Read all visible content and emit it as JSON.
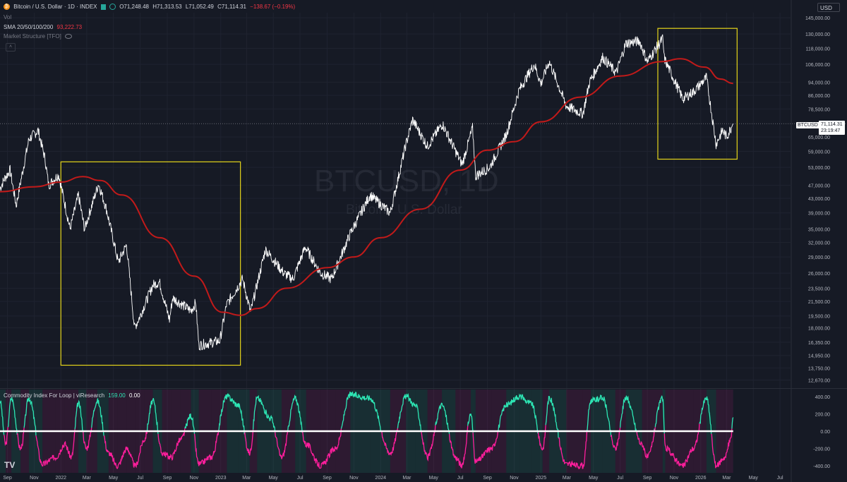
{
  "header": {
    "symbol_title": "Bitcoin / U.S. Dollar · 1D · INDEX",
    "btc_glyph": "₿",
    "ohlc": {
      "open": "O71,248.48",
      "high": "H71,313.53",
      "low": "L71,052.49",
      "close": "C71,114.31",
      "change": "−138.67 (−0.19%)"
    },
    "currency": "USD",
    "collapse_glyph": "˄"
  },
  "indicators": {
    "vol_label": "Vol",
    "sma_label": "SMA 20/50/100/200",
    "sma_value": "93,222.73",
    "market_structure_label": "Market Structure [TFO]",
    "cci_label": "Commodity Index For Loop | viResearch",
    "cci_value_1": "159.00",
    "cci_value_2": "0.00"
  },
  "watermark": {
    "title": "BTCUSD, 1D",
    "subtitle": "Bitcoin / U.S. Dollar"
  },
  "price_label": {
    "symbol": "BTCUSD",
    "last_price": "71,114.31",
    "countdown": "23:19:47"
  },
  "tradingview_logo": "TV",
  "colors": {
    "background": "#161a25",
    "price_line": "#ffffff",
    "sma": "#c21a1a",
    "highlight_box": "#e5d51a",
    "cci_up": "#2de6b4",
    "cci_down": "#ff1e9c"
  },
  "chart_data": [
    {
      "type": "line",
      "title": "BTCUSD, 1D",
      "subtitle": "Bitcoin / U.S. Dollar",
      "x_labels": [
        "Sep",
        "Nov",
        "2022",
        "Mar",
        "May",
        "Jul",
        "Sep",
        "Nov",
        "2023",
        "Mar",
        "May",
        "Jul",
        "Sep",
        "Nov",
        "2024",
        "Mar",
        "May",
        "Jul",
        "Sep",
        "Nov",
        "2025",
        "Mar",
        "May",
        "Jul",
        "Sep",
        "Nov",
        "2026",
        "Mar",
        "May",
        "Jul"
      ],
      "x_start": "2021-08-15",
      "x_end": "2026-07-25",
      "y_scale": "log",
      "ylim": [
        12000,
        150000
      ],
      "y_ticks": [
        "145,000.00",
        "130,000.00",
        "118,000.00",
        "106,000.00",
        "94,000.00",
        "86,000.00",
        "78,500.00",
        "65,000.00",
        "59,000.00",
        "53,000.00",
        "47,000.00",
        "43,000.00",
        "39,000.00",
        "35,000.00",
        "32,000.00",
        "29,000.00",
        "26,000.00",
        "23,500.00",
        "21,500.00",
        "19,500.00",
        "18,000.00",
        "16,350.00",
        "14,950.00",
        "13,750.00",
        "12,670.00"
      ],
      "series": [
        {
          "name": "BTCUSD",
          "points": [
            [
              "2021-08-15",
              46000
            ],
            [
              "2021-08-25",
              49000
            ],
            [
              "2021-09-07",
              52000
            ],
            [
              "2021-09-21",
              41000
            ],
            [
              "2021-10-01",
              48000
            ],
            [
              "2021-10-20",
              64000
            ],
            [
              "2021-11-10",
              68000
            ],
            [
              "2021-11-26",
              56000
            ],
            [
              "2021-12-04",
              47000
            ],
            [
              "2021-12-27",
              50500
            ],
            [
              "2022-01-22",
              35000
            ],
            [
              "2022-02-10",
              44000
            ],
            [
              "2022-02-24",
              35000
            ],
            [
              "2022-03-28",
              47500
            ],
            [
              "2022-04-15",
              40000
            ],
            [
              "2022-05-12",
              28000
            ],
            [
              "2022-05-31",
              31500
            ],
            [
              "2022-06-18",
              18000
            ],
            [
              "2022-07-01",
              19500
            ],
            [
              "2022-07-30",
              24000
            ],
            [
              "2022-08-14",
              24500
            ],
            [
              "2022-09-06",
              19000
            ],
            [
              "2022-09-13",
              22000
            ],
            [
              "2022-10-25",
              20200
            ],
            [
              "2022-11-05",
              21300
            ],
            [
              "2022-11-12",
              16000
            ],
            [
              "2022-12-30",
              16500
            ],
            [
              "2023-01-14",
              21000
            ],
            [
              "2023-02-20",
              25000
            ],
            [
              "2023-03-10",
              20000
            ],
            [
              "2023-04-13",
              30500
            ],
            [
              "2023-05-25",
              26000
            ],
            [
              "2023-06-15",
              25000
            ],
            [
              "2023-07-13",
              31000
            ],
            [
              "2023-08-17",
              26000
            ],
            [
              "2023-09-11",
              25000
            ],
            [
              "2023-10-24",
              34000
            ],
            [
              "2023-12-08",
              44000
            ],
            [
              "2024-01-23",
              39000
            ],
            [
              "2024-02-28",
              62000
            ],
            [
              "2024-03-14",
              73000
            ],
            [
              "2024-04-17",
              61000
            ],
            [
              "2024-05-21",
              71000
            ],
            [
              "2024-07-05",
              54000
            ],
            [
              "2024-07-29",
              69000
            ],
            [
              "2024-08-05",
              50000
            ],
            [
              "2024-09-06",
              53000
            ],
            [
              "2024-10-14",
              66000
            ],
            [
              "2024-11-12",
              89000
            ],
            [
              "2024-12-17",
              106000
            ],
            [
              "2025-01-01",
              93000
            ],
            [
              "2025-01-20",
              108000
            ],
            [
              "2025-02-28",
              80000
            ],
            [
              "2025-04-07",
              76000
            ],
            [
              "2025-04-22",
              94000
            ],
            [
              "2025-05-22",
              111000
            ],
            [
              "2025-06-22",
              100000
            ],
            [
              "2025-07-14",
              122000
            ],
            [
              "2025-08-14",
              124000
            ],
            [
              "2025-09-01",
              108000
            ],
            [
              "2025-10-06",
              126000
            ],
            [
              "2025-10-10",
              110000
            ],
            [
              "2025-11-21",
              84000
            ],
            [
              "2025-12-15",
              88000
            ],
            [
              "2026-01-14",
              97000
            ],
            [
              "2026-02-05",
              62000
            ],
            [
              "2026-02-20",
              68000
            ],
            [
              "2026-03-01",
              65000
            ],
            [
              "2026-03-16",
              71114
            ]
          ]
        },
        {
          "name": "SMA 200",
          "points": [
            [
              "2021-08-15",
              45000
            ],
            [
              "2021-11-01",
              46500
            ],
            [
              "2022-01-01",
              48000
            ],
            [
              "2022-02-20",
              49800
            ],
            [
              "2022-04-01",
              48500
            ],
            [
              "2022-05-20",
              44000
            ],
            [
              "2022-08-15",
              33000
            ],
            [
              "2022-11-01",
              25500
            ],
            [
              "2023-01-05",
              20000
            ],
            [
              "2023-02-15",
              19600
            ],
            [
              "2023-03-25",
              20500
            ],
            [
              "2023-06-01",
              23500
            ],
            [
              "2023-09-01",
              27000
            ],
            [
              "2023-11-01",
              29000
            ],
            [
              "2024-01-01",
              33000
            ],
            [
              "2024-04-01",
              40000
            ],
            [
              "2024-07-01",
              52000
            ],
            [
              "2024-09-01",
              59500
            ],
            [
              "2024-11-01",
              63000
            ],
            [
              "2025-01-01",
              72000
            ],
            [
              "2025-04-01",
              85000
            ],
            [
              "2025-07-01",
              98000
            ],
            [
              "2025-10-05",
              108000
            ],
            [
              "2025-11-15",
              110000
            ],
            [
              "2026-01-10",
              104000
            ],
            [
              "2026-02-15",
              96000
            ],
            [
              "2026-03-16",
              93223
            ]
          ]
        }
      ],
      "annotations": [
        {
          "type": "rectangle",
          "from": "2022-01-01",
          "to": "2023-02-15",
          "low": 14000,
          "high": 55000
        },
        {
          "type": "rectangle",
          "from": "2025-09-25",
          "to": "2026-03-25",
          "low": 56000,
          "high": 135000
        }
      ]
    },
    {
      "type": "area",
      "title": "Commodity Index For Loop | viResearch",
      "ylim": [
        -480,
        480
      ],
      "y_ticks": [
        "400.00",
        "200.00",
        "0.00",
        "-200.00",
        "-400.00"
      ],
      "zero_line": 0,
      "series": [
        {
          "name": "CCI Loop",
          "points": [
            [
              "2021-08-15",
              350
            ],
            [
              "2021-08-28",
              -150
            ],
            [
              "2021-09-10",
              380
            ],
            [
              "2021-10-01",
              -200
            ],
            [
              "2021-10-20",
              380
            ],
            [
              "2021-11-20",
              -380
            ],
            [
              "2021-12-20",
              -300
            ],
            [
              "2022-01-10",
              -150
            ],
            [
              "2022-01-25",
              -300
            ],
            [
              "2022-02-10",
              320
            ],
            [
              "2022-02-28",
              -200
            ],
            [
              "2022-03-25",
              350
            ],
            [
              "2022-04-20",
              -250
            ],
            [
              "2022-05-10",
              -400
            ],
            [
              "2022-06-01",
              -200
            ],
            [
              "2022-06-20",
              -400
            ],
            [
              "2022-07-10",
              -100
            ],
            [
              "2022-07-30",
              350
            ],
            [
              "2022-08-20",
              -250
            ],
            [
              "2022-09-10",
              -300
            ],
            [
              "2022-10-01",
              -100
            ],
            [
              "2022-10-25",
              180
            ],
            [
              "2022-11-12",
              -380
            ],
            [
              "2022-12-10",
              -300
            ],
            [
              "2023-01-15",
              400
            ],
            [
              "2023-02-10",
              300
            ],
            [
              "2023-03-08",
              -250
            ],
            [
              "2023-03-25",
              380
            ],
            [
              "2023-04-25",
              150
            ],
            [
              "2023-05-20",
              -300
            ],
            [
              "2023-06-20",
              380
            ],
            [
              "2023-07-15",
              -150
            ],
            [
              "2023-08-17",
              -400
            ],
            [
              "2023-09-20",
              -200
            ],
            [
              "2023-10-24",
              420
            ],
            [
              "2023-12-08",
              380
            ],
            [
              "2024-01-23",
              -250
            ],
            [
              "2024-02-28",
              400
            ],
            [
              "2024-03-20",
              300
            ],
            [
              "2024-04-17",
              -300
            ],
            [
              "2024-05-20",
              300
            ],
            [
              "2024-06-20",
              -300
            ],
            [
              "2024-07-05",
              -400
            ],
            [
              "2024-07-25",
              200
            ],
            [
              "2024-08-05",
              -350
            ],
            [
              "2024-09-10",
              -200
            ],
            [
              "2024-10-14",
              300
            ],
            [
              "2024-11-12",
              400
            ],
            [
              "2024-12-10",
              320
            ],
            [
              "2025-01-05",
              -200
            ],
            [
              "2025-01-20",
              380
            ],
            [
              "2025-02-28",
              -380
            ],
            [
              "2025-04-07",
              -400
            ],
            [
              "2025-04-25",
              350
            ],
            [
              "2025-05-22",
              380
            ],
            [
              "2025-06-20",
              -200
            ],
            [
              "2025-07-14",
              380
            ],
            [
              "2025-08-20",
              -150
            ],
            [
              "2025-09-01",
              -300
            ],
            [
              "2025-10-06",
              380
            ],
            [
              "2025-10-12",
              -200
            ],
            [
              "2025-11-21",
              -400
            ],
            [
              "2025-12-15",
              -200
            ],
            [
              "2026-01-14",
              380
            ],
            [
              "2026-02-05",
              -400
            ],
            [
              "2026-02-25",
              -300
            ],
            [
              "2026-03-10",
              -100
            ],
            [
              "2026-03-16",
              159
            ]
          ]
        }
      ]
    }
  ]
}
